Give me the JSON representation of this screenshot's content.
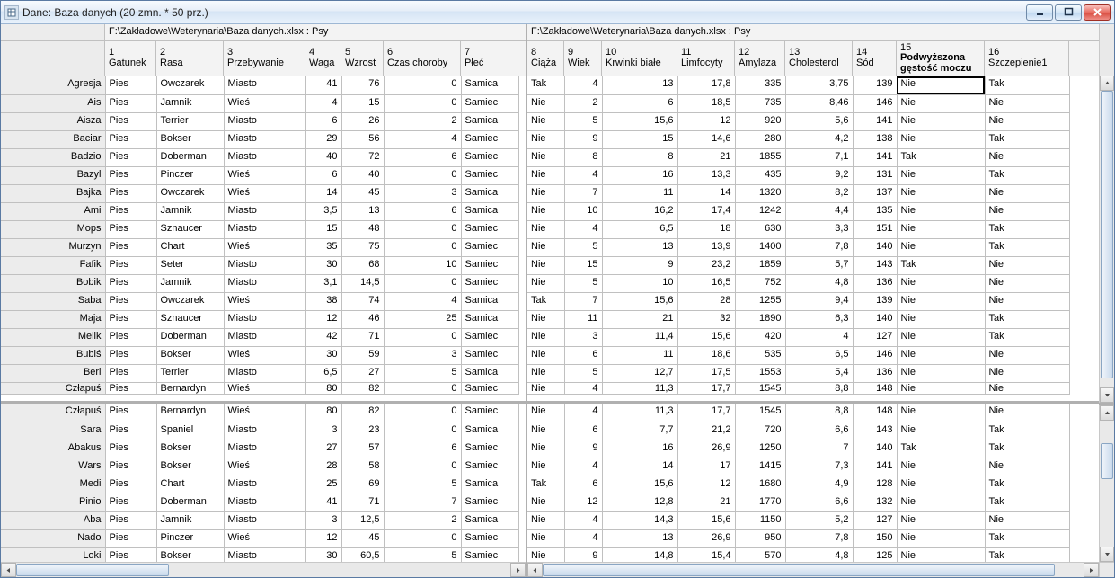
{
  "window": {
    "title": "Dane: Baza danych (20 zmn. * 50 prz.)"
  },
  "file_path": "F:\\Zakładowe\\Weterynaria\\Baza danych.xlsx : Psy",
  "layout": {
    "row_header_width": 116,
    "left_col_widths": [
      57,
      75,
      91,
      40,
      47,
      86,
      64
    ],
    "right_col_widths": [
      41,
      42,
      84,
      64,
      56,
      75,
      49,
      98,
      94
    ],
    "top_rows_visible": 17,
    "split_partial_row_index": 17,
    "v_thumb_top_pos_pct": 0,
    "v_thumb_top_height": 320,
    "v_thumb_bottom_pos_pct": 18,
    "v_thumb_bottom_height": 40,
    "h_thumb_left_pos": 0,
    "h_thumb_left_width": 170,
    "h_thumb_right_pos": 0,
    "h_thumb_right_width": 570
  },
  "columns_left": [
    {
      "n": "1",
      "label": "Gatunek"
    },
    {
      "n": "2",
      "label": "Rasa"
    },
    {
      "n": "3",
      "label": "Przebywanie"
    },
    {
      "n": "4",
      "label": "Waga",
      "num": true
    },
    {
      "n": "5",
      "label": "Wzrost",
      "num": true
    },
    {
      "n": "6",
      "label": "Czas choroby",
      "num": true
    },
    {
      "n": "7",
      "label": "Płeć"
    }
  ],
  "columns_right": [
    {
      "n": "8",
      "label": "Ciąża"
    },
    {
      "n": "9",
      "label": "Wiek",
      "num": true
    },
    {
      "n": "10",
      "label": "Krwinki białe",
      "num": true
    },
    {
      "n": "11",
      "label": "Limfocyty",
      "num": true
    },
    {
      "n": "12",
      "label": "Amylaza",
      "num": true
    },
    {
      "n": "13",
      "label": "Cholesterol",
      "num": true
    },
    {
      "n": "14",
      "label": "Sód",
      "num": true
    },
    {
      "n": "15",
      "label": "Podwyższona gęstość moczu",
      "highlight": true
    },
    {
      "n": "16",
      "label": "Szczepienie1"
    }
  ],
  "selected_cell": {
    "row": 0,
    "right_col": 7
  },
  "rows_top": [
    {
      "name": "Agresja",
      "l": [
        "Pies",
        "Owczarek",
        "Miasto",
        "41",
        "76",
        "0",
        "Samica"
      ],
      "r": [
        "Tak",
        "4",
        "13",
        "17,8",
        "335",
        "3,75",
        "139",
        "Nie",
        "Tak"
      ]
    },
    {
      "name": "Ais",
      "l": [
        "Pies",
        "Jamnik",
        "Wieś",
        "4",
        "15",
        "0",
        "Samiec"
      ],
      "r": [
        "Nie",
        "2",
        "6",
        "18,5",
        "735",
        "8,46",
        "146",
        "Nie",
        "Nie"
      ]
    },
    {
      "name": "Aisza",
      "l": [
        "Pies",
        "Terrier",
        "Miasto",
        "6",
        "26",
        "2",
        "Samica"
      ],
      "r": [
        "Nie",
        "5",
        "15,6",
        "12",
        "920",
        "5,6",
        "141",
        "Nie",
        "Nie"
      ]
    },
    {
      "name": "Baciar",
      "l": [
        "Pies",
        "Bokser",
        "Miasto",
        "29",
        "56",
        "4",
        "Samiec"
      ],
      "r": [
        "Nie",
        "9",
        "15",
        "14,6",
        "280",
        "4,2",
        "138",
        "Nie",
        "Tak"
      ]
    },
    {
      "name": "Badzio",
      "l": [
        "Pies",
        "Doberman",
        "Miasto",
        "40",
        "72",
        "6",
        "Samiec"
      ],
      "r": [
        "Nie",
        "8",
        "8",
        "21",
        "1855",
        "7,1",
        "141",
        "Tak",
        "Nie"
      ]
    },
    {
      "name": "Bazyl",
      "l": [
        "Pies",
        "Pinczer",
        "Wieś",
        "6",
        "40",
        "0",
        "Samiec"
      ],
      "r": [
        "Nie",
        "4",
        "16",
        "13,3",
        "435",
        "9,2",
        "131",
        "Nie",
        "Tak"
      ]
    },
    {
      "name": "Bajka",
      "l": [
        "Pies",
        "Owczarek",
        "Wieś",
        "14",
        "45",
        "3",
        "Samica"
      ],
      "r": [
        "Nie",
        "7",
        "11",
        "14",
        "1320",
        "8,2",
        "137",
        "Nie",
        "Nie"
      ]
    },
    {
      "name": "Ami",
      "l": [
        "Pies",
        "Jamnik",
        "Miasto",
        "3,5",
        "13",
        "6",
        "Samica"
      ],
      "r": [
        "Nie",
        "10",
        "16,2",
        "17,4",
        "1242",
        "4,4",
        "135",
        "Nie",
        "Nie"
      ]
    },
    {
      "name": "Mops",
      "l": [
        "Pies",
        "Sznaucer",
        "Miasto",
        "15",
        "48",
        "0",
        "Samiec"
      ],
      "r": [
        "Nie",
        "4",
        "6,5",
        "18",
        "630",
        "3,3",
        "151",
        "Nie",
        "Tak"
      ]
    },
    {
      "name": "Murzyn",
      "l": [
        "Pies",
        "Chart",
        "Wieś",
        "35",
        "75",
        "0",
        "Samiec"
      ],
      "r": [
        "Nie",
        "5",
        "13",
        "13,9",
        "1400",
        "7,8",
        "140",
        "Nie",
        "Tak"
      ]
    },
    {
      "name": "Fafik",
      "l": [
        "Pies",
        "Seter",
        "Miasto",
        "30",
        "68",
        "10",
        "Samiec"
      ],
      "r": [
        "Nie",
        "15",
        "9",
        "23,2",
        "1859",
        "5,7",
        "143",
        "Tak",
        "Nie"
      ]
    },
    {
      "name": "Bobik",
      "l": [
        "Pies",
        "Jamnik",
        "Miasto",
        "3,1",
        "14,5",
        "0",
        "Samiec"
      ],
      "r": [
        "Nie",
        "5",
        "10",
        "16,5",
        "752",
        "4,8",
        "136",
        "Nie",
        "Nie"
      ]
    },
    {
      "name": "Saba",
      "l": [
        "Pies",
        "Owczarek",
        "Wieś",
        "38",
        "74",
        "4",
        "Samica"
      ],
      "r": [
        "Tak",
        "7",
        "15,6",
        "28",
        "1255",
        "9,4",
        "139",
        "Nie",
        "Nie"
      ]
    },
    {
      "name": "Maja",
      "l": [
        "Pies",
        "Sznaucer",
        "Miasto",
        "12",
        "46",
        "25",
        "Samica"
      ],
      "r": [
        "Nie",
        "11",
        "21",
        "32",
        "1890",
        "6,3",
        "140",
        "Nie",
        "Tak"
      ]
    },
    {
      "name": "Melik",
      "l": [
        "Pies",
        "Doberman",
        "Miasto",
        "42",
        "71",
        "0",
        "Samiec"
      ],
      "r": [
        "Nie",
        "3",
        "11,4",
        "15,6",
        "420",
        "4",
        "127",
        "Nie",
        "Tak"
      ]
    },
    {
      "name": "Bubiś",
      "l": [
        "Pies",
        "Bokser",
        "Wieś",
        "30",
        "59",
        "3",
        "Samiec"
      ],
      "r": [
        "Nie",
        "6",
        "11",
        "18,6",
        "535",
        "6,5",
        "146",
        "Nie",
        "Nie"
      ]
    },
    {
      "name": "Beri",
      "l": [
        "Pies",
        "Terrier",
        "Miasto",
        "6,5",
        "27",
        "5",
        "Samica"
      ],
      "r": [
        "Nie",
        "5",
        "12,7",
        "17,5",
        "1553",
        "5,4",
        "136",
        "Nie",
        "Nie"
      ]
    }
  ],
  "partial_row": {
    "name": "Człapuś",
    "l": [
      "Pies",
      "Bernardyn",
      "Wieś",
      "80",
      "82",
      "0",
      "Samiec"
    ],
    "r": [
      "Nie",
      "4",
      "11,3",
      "17,7",
      "1545",
      "8,8",
      "148",
      "Nie",
      "Nie"
    ]
  },
  "rows_bottom": [
    {
      "name": "Człapuś",
      "l": [
        "Pies",
        "Bernardyn",
        "Wieś",
        "80",
        "82",
        "0",
        "Samiec"
      ],
      "r": [
        "Nie",
        "4",
        "11,3",
        "17,7",
        "1545",
        "8,8",
        "148",
        "Nie",
        "Nie"
      ]
    },
    {
      "name": "Sara",
      "l": [
        "Pies",
        "Spaniel",
        "Miasto",
        "3",
        "23",
        "0",
        "Samica"
      ],
      "r": [
        "Nie",
        "6",
        "7,7",
        "21,2",
        "720",
        "6,6",
        "143",
        "Nie",
        "Tak"
      ]
    },
    {
      "name": "Abakus",
      "l": [
        "Pies",
        "Bokser",
        "Miasto",
        "27",
        "57",
        "6",
        "Samiec"
      ],
      "r": [
        "Nie",
        "9",
        "16",
        "26,9",
        "1250",
        "7",
        "140",
        "Tak",
        "Tak"
      ]
    },
    {
      "name": "Wars",
      "l": [
        "Pies",
        "Bokser",
        "Wieś",
        "28",
        "58",
        "0",
        "Samiec"
      ],
      "r": [
        "Nie",
        "4",
        "14",
        "17",
        "1415",
        "7,3",
        "141",
        "Nie",
        "Nie"
      ]
    },
    {
      "name": "Medi",
      "l": [
        "Pies",
        "Chart",
        "Miasto",
        "25",
        "69",
        "5",
        "Samica"
      ],
      "r": [
        "Tak",
        "6",
        "15,6",
        "12",
        "1680",
        "4,9",
        "128",
        "Nie",
        "Tak"
      ]
    },
    {
      "name": "Pinio",
      "l": [
        "Pies",
        "Doberman",
        "Miasto",
        "41",
        "71",
        "7",
        "Samiec"
      ],
      "r": [
        "Nie",
        "12",
        "12,8",
        "21",
        "1770",
        "6,6",
        "132",
        "Nie",
        "Tak"
      ]
    },
    {
      "name": "Aba",
      "l": [
        "Pies",
        "Jamnik",
        "Miasto",
        "3",
        "12,5",
        "2",
        "Samica"
      ],
      "r": [
        "Nie",
        "4",
        "14,3",
        "15,6",
        "1150",
        "5,2",
        "127",
        "Nie",
        "Nie"
      ]
    },
    {
      "name": "Nado",
      "l": [
        "Pies",
        "Pinczer",
        "Wieś",
        "12",
        "45",
        "0",
        "Samiec"
      ],
      "r": [
        "Nie",
        "4",
        "13",
        "26,9",
        "950",
        "7,8",
        "150",
        "Nie",
        "Tak"
      ]
    },
    {
      "name": "Loki",
      "l": [
        "Pies",
        "Bokser",
        "Miasto",
        "30",
        "60,5",
        "5",
        "Samiec"
      ],
      "r": [
        "Nie",
        "9",
        "14,8",
        "15,4",
        "570",
        "4,8",
        "125",
        "Nie",
        "Tak"
      ]
    }
  ]
}
